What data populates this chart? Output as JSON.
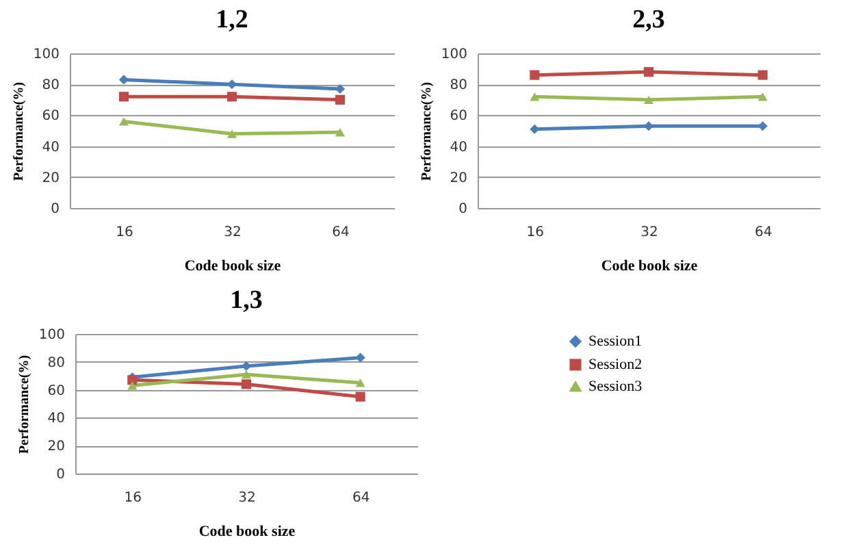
{
  "chart_data": [
    {
      "type": "line",
      "title": "1,2",
      "xlabel": "Code book size",
      "ylabel": "Performance(%)",
      "categories": [
        "16",
        "32",
        "64"
      ],
      "ylim": [
        0,
        100
      ],
      "yticks": [
        0,
        20,
        40,
        60,
        80,
        100
      ],
      "grid": "y",
      "series": [
        {
          "color": "#4a7ebb",
          "marker": "diamond",
          "values": [
            83,
            80,
            77
          ]
        },
        {
          "color": "#be4b48",
          "marker": "square",
          "values": [
            72,
            72,
            70
          ]
        },
        {
          "color": "#98b954",
          "marker": "triangle",
          "values": [
            56,
            48,
            49
          ]
        }
      ]
    },
    {
      "type": "line",
      "title": "2,3",
      "xlabel": "Code book size",
      "ylabel": "Performance(%)",
      "categories": [
        "16",
        "32",
        "64"
      ],
      "ylim": [
        0,
        100
      ],
      "yticks": [
        0,
        20,
        40,
        60,
        80,
        100
      ],
      "grid": "y",
      "series": [
        {
          "color": "#4a7ebb",
          "marker": "diamond",
          "values": [
            51,
            53,
            53
          ]
        },
        {
          "color": "#be4b48",
          "marker": "square",
          "values": [
            86,
            88,
            86
          ]
        },
        {
          "color": "#98b954",
          "marker": "triangle",
          "values": [
            72,
            70,
            72
          ]
        }
      ]
    },
    {
      "type": "line",
      "title": "1,3",
      "xlabel": "Code book size",
      "ylabel": "Performance(%)",
      "categories": [
        "16",
        "32",
        "64"
      ],
      "ylim": [
        0,
        100
      ],
      "yticks": [
        0,
        20,
        40,
        60,
        80,
        100
      ],
      "grid": "y",
      "legend": "right",
      "series": [
        {
          "name": "Session1",
          "color": "#4a7ebb",
          "marker": "diamond",
          "values": [
            69,
            77,
            83
          ]
        },
        {
          "name": "Session2",
          "color": "#be4b48",
          "marker": "square",
          "values": [
            67,
            64,
            55
          ]
        },
        {
          "name": "Session3",
          "color": "#98b954",
          "marker": "triangle",
          "values": [
            63,
            71,
            65
          ]
        }
      ]
    }
  ]
}
